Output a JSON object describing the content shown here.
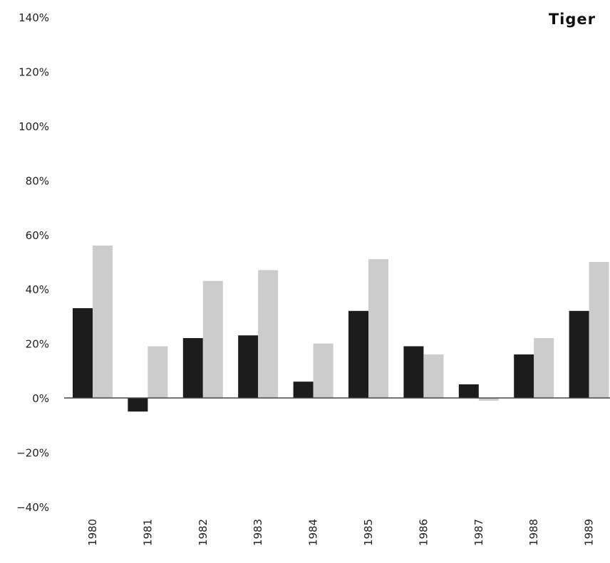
{
  "chart_data": {
    "type": "bar",
    "title": "Tiger",
    "xlabel": "",
    "ylabel": "",
    "categories": [
      "1980",
      "1981",
      "1982",
      "1983",
      "1984",
      "1985",
      "1986",
      "1987",
      "1988",
      "1989"
    ],
    "series": [
      {
        "color": "#1c1c1c",
        "values": [
          33,
          -5,
          22,
          23,
          6,
          32,
          19,
          5,
          16,
          32
        ]
      },
      {
        "color": "#cccccc",
        "values": [
          56,
          19,
          43,
          47,
          20,
          51,
          16,
          -1,
          22,
          50
        ]
      }
    ],
    "ylim": [
      -40,
      140
    ],
    "yticks": [
      140,
      120,
      100,
      80,
      60,
      40,
      20,
      0,
      -20,
      -40
    ],
    "ytick_labels": [
      "140%",
      "120%",
      "100%",
      "80%",
      "60%",
      "40%",
      "20%",
      "0%",
      "−20%",
      "−40%"
    ],
    "grid": false,
    "legend": "none"
  }
}
